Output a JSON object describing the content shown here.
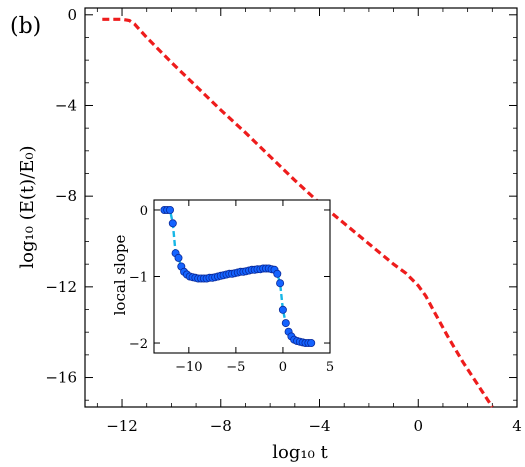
{
  "chart_data": [
    {
      "type": "line",
      "panel_label": "(b)",
      "xlabel": "log₁₀ t",
      "ylabel": "log₁₀ (E(t)/E₀)",
      "xlim": [
        -13.5,
        4
      ],
      "ylim": [
        -17.3,
        0.3
      ],
      "xticks": [
        -12,
        -8,
        -4,
        0,
        4
      ],
      "xtick_labels": [
        "−12",
        "−8",
        "−4",
        "0",
        "4"
      ],
      "yticks": [
        0,
        -4,
        -8,
        -12,
        -16
      ],
      "ytick_labels": [
        "0",
        "−4",
        "−8",
        "−12",
        "−16"
      ],
      "series": [
        {
          "color": "#ee1c1c",
          "style": "dashed",
          "x": [
            -12.8,
            -12.4,
            -12.0,
            -11.7,
            -11.5,
            -11.0,
            -10.0,
            -9.0,
            -8.0,
            -7.0,
            -6.0,
            -5.0,
            -4.0,
            -3.0,
            -2.0,
            -1.0,
            -0.5,
            0.0,
            0.3,
            0.7,
            1.2,
            1.8,
            2.4,
            3.0
          ],
          "y": [
            -0.2,
            -0.2,
            -0.2,
            -0.25,
            -0.4,
            -1.0,
            -2.1,
            -3.15,
            -4.2,
            -5.2,
            -6.25,
            -7.3,
            -8.3,
            -9.2,
            -10.1,
            -11.0,
            -11.4,
            -11.95,
            -12.4,
            -13.2,
            -14.2,
            -15.3,
            -16.3,
            -17.3
          ]
        }
      ]
    },
    {
      "type": "scatter",
      "xlabel": "",
      "ylabel": "local slope",
      "xlim": [
        -13.7,
        5
      ],
      "ylim": [
        -2.15,
        0.15
      ],
      "xticks": [
        -10,
        -5,
        0,
        5
      ],
      "xtick_labels": [
        "−10",
        "−5",
        "0",
        "5"
      ],
      "yticks": [
        0,
        -1,
        -2
      ],
      "ytick_labels": [
        "0",
        "−1",
        "−2"
      ],
      "line_color": "#17b7e6",
      "marker_color": "#1463ff",
      "marker_edge": "#0a2a9a",
      "series": [
        {
          "x": [
            -12.6,
            -12.3,
            -12.0,
            -11.7,
            -11.4,
            -11.1,
            -10.8,
            -10.5,
            -10.2,
            -9.9,
            -9.6,
            -9.3,
            -9.0,
            -8.7,
            -8.4,
            -8.1,
            -7.8,
            -7.5,
            -7.2,
            -6.9,
            -6.6,
            -6.3,
            -6.0,
            -5.7,
            -5.4,
            -5.1,
            -4.8,
            -4.5,
            -4.2,
            -3.9,
            -3.6,
            -3.3,
            -3.0,
            -2.7,
            -2.4,
            -2.1,
            -1.8,
            -1.5,
            -1.2,
            -0.9,
            -0.6,
            -0.3,
            0.0,
            0.3,
            0.6,
            0.9,
            1.2,
            1.5,
            1.8,
            2.1,
            2.4,
            2.7,
            3.0
          ],
          "y": [
            0.0,
            0.0,
            0.0,
            -0.2,
            -0.65,
            -0.72,
            -0.85,
            -0.93,
            -0.97,
            -1.0,
            -1.01,
            -1.02,
            -1.03,
            -1.03,
            -1.03,
            -1.03,
            -1.02,
            -1.02,
            -1.01,
            -1.0,
            -0.99,
            -0.98,
            -0.97,
            -0.96,
            -0.96,
            -0.95,
            -0.94,
            -0.93,
            -0.93,
            -0.92,
            -0.91,
            -0.9,
            -0.9,
            -0.89,
            -0.89,
            -0.88,
            -0.88,
            -0.88,
            -0.89,
            -0.9,
            -0.96,
            -1.1,
            -1.5,
            -1.7,
            -1.83,
            -1.9,
            -1.95,
            -1.97,
            -1.98,
            -1.99,
            -2.0,
            -2.0,
            -2.0
          ]
        }
      ]
    }
  ]
}
